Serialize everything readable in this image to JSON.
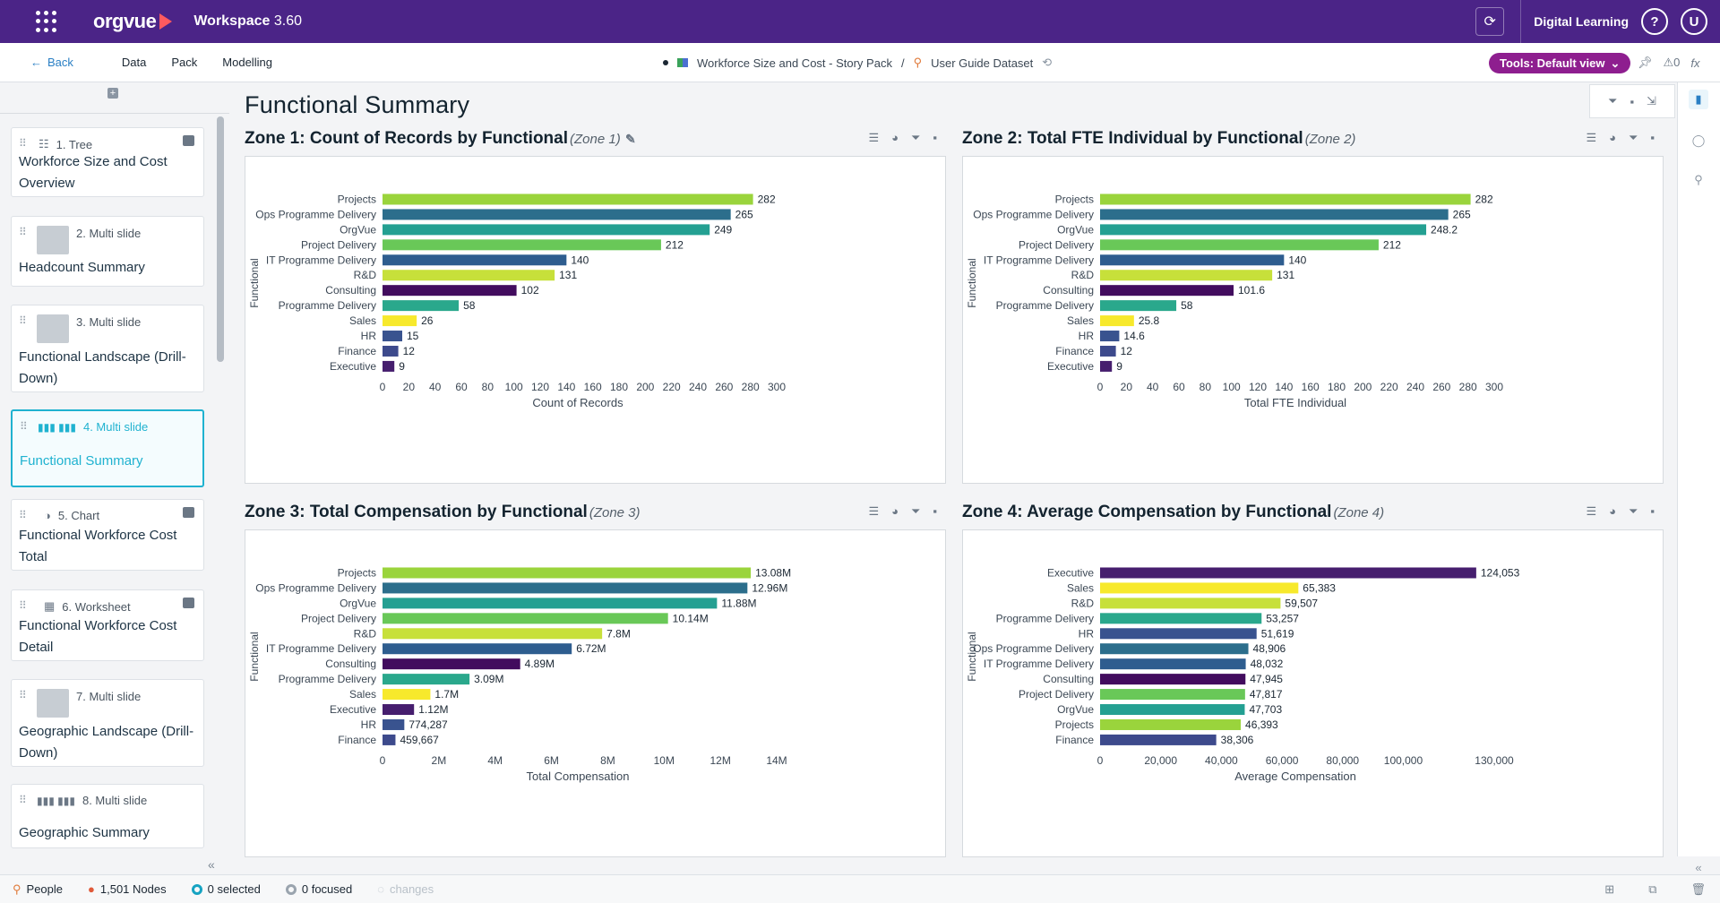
{
  "topbar": {
    "logo": "orgvue",
    "workspace": "Workspace",
    "version": "3.60",
    "digital_learning": "Digital Learning",
    "help": "?",
    "user_initial": "U"
  },
  "subbar": {
    "back": "Back",
    "nav": [
      "Data",
      "Pack",
      "Modelling"
    ],
    "pack_name": "Workforce Size and Cost - Story Pack",
    "separator": "/",
    "dataset": "User Guide Dataset",
    "tools": "Tools: Default view",
    "alerts": "0",
    "fx": "fx"
  },
  "sidebar": {
    "items": [
      {
        "num": "1. Tree",
        "title": "Workforce Size and Cost Overview"
      },
      {
        "num": "2. Multi slide",
        "title": "Headcount Summary"
      },
      {
        "num": "3. Multi slide",
        "title": "Functional Landscape (Drill-Down)"
      },
      {
        "num": "4. Multi slide",
        "title": "Functional Summary"
      },
      {
        "num": "5. Chart",
        "title": "Functional Workforce Cost Total"
      },
      {
        "num": "6. Worksheet",
        "title": "Functional Workforce Cost Detail"
      },
      {
        "num": "7. Multi slide",
        "title": "Geographic Landscape (Drill-Down)"
      },
      {
        "num": "8. Multi slide",
        "title": "Geographic Summary"
      }
    ]
  },
  "main": {
    "page_title": "Functional Summary"
  },
  "status": {
    "people": "People",
    "nodes": "1,501 Nodes",
    "selected": "0 selected",
    "focused": "0 focused",
    "changes": "changes"
  },
  "colors": {
    "Projects": "#9ad43c",
    "Ops Programme Delivery": "#2c6e8c",
    "OrgVue": "#24a092",
    "Project Delivery": "#69c858",
    "IT Programme Delivery": "#2e5d8f",
    "R&D": "#c7e03a",
    "Consulting": "#420c5e",
    "Programme Delivery": "#2aa88c",
    "Sales": "#f7e92c",
    "HR": "#39538f",
    "Finance": "#3d4a8c",
    "Executive": "#461e6e"
  },
  "chart_data": [
    {
      "zone_title": "Zone 1: Count of Records by Functional",
      "zone_sub": "(Zone 1)",
      "type": "bar",
      "orientation": "horizontal",
      "ylabel": "Functional",
      "xlabel": "Count of Records",
      "xlim": [
        0,
        300
      ],
      "ticks": [
        0,
        20,
        40,
        60,
        80,
        100,
        120,
        140,
        160,
        180,
        200,
        220,
        240,
        260,
        280,
        300
      ],
      "tick_labels": [
        "0",
        "20",
        "40",
        "60",
        "80",
        "100",
        "120",
        "140",
        "160",
        "180",
        "200",
        "220",
        "240",
        "260",
        "280",
        "300"
      ],
      "categories": [
        "Projects",
        "Ops Programme Delivery",
        "OrgVue",
        "Project Delivery",
        "IT Programme Delivery",
        "R&D",
        "Consulting",
        "Programme Delivery",
        "Sales",
        "HR",
        "Finance",
        "Executive"
      ],
      "values": [
        282,
        265,
        249,
        212,
        140,
        131,
        102,
        58,
        26,
        15,
        12,
        9
      ],
      "labels": [
        "282",
        "265",
        "249",
        "212",
        "140",
        "131",
        "102",
        "58",
        "26",
        "15",
        "12",
        "9"
      ]
    },
    {
      "zone_title": "Zone 2: Total FTE Individual by Functional",
      "zone_sub": "(Zone 2)",
      "type": "bar",
      "orientation": "horizontal",
      "ylabel": "Functional",
      "xlabel": "Total FTE Individual",
      "xlim": [
        0,
        300
      ],
      "ticks": [
        0,
        20,
        40,
        60,
        80,
        100,
        120,
        140,
        160,
        180,
        200,
        220,
        240,
        260,
        280,
        300
      ],
      "tick_labels": [
        "0",
        "20",
        "40",
        "60",
        "80",
        "100",
        "120",
        "140",
        "160",
        "180",
        "200",
        "220",
        "240",
        "260",
        "280",
        "300"
      ],
      "categories": [
        "Projects",
        "Ops Programme Delivery",
        "OrgVue",
        "Project Delivery",
        "IT Programme Delivery",
        "R&D",
        "Consulting",
        "Programme Delivery",
        "Sales",
        "HR",
        "Finance",
        "Executive"
      ],
      "values": [
        282,
        265,
        248.2,
        212,
        140,
        131,
        101.6,
        58,
        25.8,
        14.6,
        12,
        9
      ],
      "labels": [
        "282",
        "265",
        "248.2",
        "212",
        "140",
        "131",
        "101.6",
        "58",
        "25.8",
        "14.6",
        "12",
        "9"
      ]
    },
    {
      "zone_title": "Zone 3: Total Compensation by Functional",
      "zone_sub": "(Zone 3)",
      "type": "bar",
      "orientation": "horizontal",
      "ylabel": "Functional",
      "xlabel": "Total Compensation",
      "xlim": [
        0,
        14000000
      ],
      "ticks": [
        0,
        2000000,
        4000000,
        6000000,
        8000000,
        10000000,
        12000000,
        14000000
      ],
      "tick_labels": [
        "0",
        "2M",
        "4M",
        "6M",
        "8M",
        "10M",
        "12M",
        "14M"
      ],
      "categories": [
        "Projects",
        "Ops Programme Delivery",
        "OrgVue",
        "Project Delivery",
        "R&D",
        "IT Programme Delivery",
        "Consulting",
        "Programme Delivery",
        "Sales",
        "Executive",
        "HR",
        "Finance"
      ],
      "values": [
        13080000,
        12960000,
        11880000,
        10140000,
        7800000,
        6720000,
        4890000,
        3090000,
        1700000,
        1120000,
        774287,
        459667
      ],
      "labels": [
        "13.08M",
        "12.96M",
        "11.88M",
        "10.14M",
        "7.8M",
        "6.72M",
        "4.89M",
        "3.09M",
        "1.7M",
        "1.12M",
        "774,287",
        "459,667"
      ]
    },
    {
      "zone_title": "Zone 4: Average Compensation by Functional",
      "zone_sub": "(Zone 4)",
      "type": "bar",
      "orientation": "horizontal",
      "ylabel": "Functional",
      "xlabel": "Average Compensation",
      "xlim": [
        0,
        130000
      ],
      "ticks": [
        0,
        20000,
        40000,
        60000,
        80000,
        100000,
        130000
      ],
      "tick_labels": [
        "0",
        "20,000",
        "40,000",
        "60,000",
        "80,000",
        "100,000",
        "130,000"
      ],
      "categories": [
        "Executive",
        "Sales",
        "R&D",
        "Programme Delivery",
        "HR",
        "Ops Programme Delivery",
        "IT Programme Delivery",
        "Consulting",
        "Project Delivery",
        "OrgVue",
        "Projects",
        "Finance"
      ],
      "values": [
        124053,
        65383,
        59507,
        53257,
        51619,
        48906,
        48032,
        47945,
        47817,
        47703,
        46393,
        38306
      ],
      "labels": [
        "124,053",
        "65,383",
        "59,507",
        "53,257",
        "51,619",
        "48,906",
        "48,032",
        "47,945",
        "47,817",
        "47,703",
        "46,393",
        "38,306"
      ]
    }
  ]
}
